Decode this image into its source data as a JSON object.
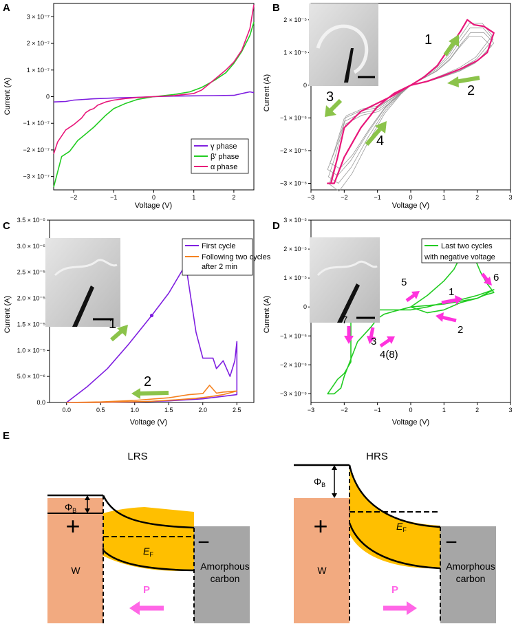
{
  "colors": {
    "purple": "#7f1fe0",
    "green": "#22cc22",
    "pink": "#e8177a",
    "orange": "#f58220",
    "gray": "#9a9a9a",
    "arrow_green": "#8bc34a",
    "arrow_pink": "#ff33dd",
    "w_fill": "#f2aa80",
    "carbon_fill": "#a6a6a6",
    "fermi_fill": "#ffbf00",
    "photo_bg": "#cfcfcf"
  },
  "chart_data": [
    {
      "panel": "A",
      "type": "line",
      "xlabel": "Voltage (V)",
      "ylabel": "Current (A)",
      "xlim": [
        -2.5,
        2.5
      ],
      "ylim": [
        -3.5e-07,
        3.5e-07
      ],
      "xticks": [
        -2,
        -1,
        0,
        1,
        2
      ],
      "xtick_labels": [
        "−2",
        "−1",
        "0",
        "1",
        "2"
      ],
      "yticks": [
        -3e-07,
        -2e-07,
        -1e-07,
        0,
        1e-07,
        2e-07,
        3e-07
      ],
      "ytick_labels": [
        "−3 × 10⁻⁷",
        "−2 × 10⁻⁷",
        "−1 × 10⁻⁷",
        "0",
        "1 × 10⁻⁷",
        "2 × 10⁻⁷",
        "3 × 10⁻⁷"
      ],
      "legend": [
        "γ phase",
        "β’ phase",
        "α phase"
      ],
      "legend_position": "bottom-right",
      "series": [
        {
          "name": "γ phase",
          "color": "purple",
          "x": [
            -2.5,
            -2.2,
            -2.0,
            -1.5,
            -1.0,
            -0.5,
            0,
            0.5,
            1.0,
            1.5,
            2.0,
            2.3,
            2.4,
            2.5
          ],
          "y": [
            -2e-08,
            -1.8e-08,
            -1.3e-08,
            -8e-09,
            -5e-09,
            -3e-09,
            0,
            2e-09,
            3e-09,
            4e-09,
            5e-09,
            1.5e-08,
            1.8e-08,
            1.5e-08
          ]
        },
        {
          "name": "β’ phase",
          "color": "green",
          "x": [
            -2.5,
            -2.3,
            -2.1,
            -1.9,
            -1.7,
            -1.5,
            -1.2,
            -1.0,
            -0.7,
            -0.4,
            0,
            0.5,
            0.9,
            1.2,
            1.5,
            1.8,
            2.0,
            2.2,
            2.4,
            2.5
          ],
          "y": [
            -3.4e-07,
            -2.25e-07,
            -2.05e-07,
            -1.65e-07,
            -1.4e-07,
            -1.15e-07,
            -7e-08,
            -4.5e-08,
            -2.5e-08,
            -1e-08,
            0,
            8e-09,
            1.8e-08,
            3.5e-08,
            6e-08,
            9e-08,
            1.25e-07,
            1.7e-07,
            2.3e-07,
            2.8e-07
          ]
        },
        {
          "name": "α phase",
          "color": "pink",
          "x": [
            -2.5,
            -2.4,
            -2.2,
            -2.0,
            -1.8,
            -1.7,
            -1.6,
            -1.5,
            -1.4,
            -1.2,
            -1.0,
            -0.7,
            -0.4,
            0,
            0.5,
            1.0,
            1.2,
            1.4,
            1.6,
            1.8,
            2.0,
            2.2,
            2.4,
            2.5
          ],
          "y": [
            -2.15e-07,
            -1.7e-07,
            -1.25e-07,
            -1.05e-07,
            -8e-08,
            -6e-08,
            -5e-08,
            -4.5e-08,
            -3.2e-08,
            -2e-08,
            -1.3e-08,
            -7e-09,
            -3e-09,
            0,
            4e-09,
            1.2e-08,
            2.5e-08,
            5e-08,
            7.5e-08,
            1e-07,
            1.3e-07,
            1.75e-07,
            2.55e-07,
            3.45e-07
          ]
        }
      ]
    },
    {
      "panel": "B",
      "type": "line",
      "xlabel": "Voltage (V)",
      "ylabel": "Current (A)",
      "xlim": [
        -3,
        3
      ],
      "ylim": [
        -3.2e-05,
        2.5e-05
      ],
      "xticks": [
        -3,
        -2,
        -1,
        0,
        1,
        2,
        3
      ],
      "xtick_labels": [
        "−3",
        "−2",
        "−1",
        "0",
        "1",
        "2",
        "3"
      ],
      "yticks": [
        -3e-05,
        -2e-05,
        -1e-05,
        0,
        1e-05,
        2e-05
      ],
      "ytick_labels": [
        "−3 × 10⁻⁵",
        "−2 × 10⁻⁵",
        "−1 × 10⁻⁵",
        "0",
        "1 × 10⁻⁵",
        "2 × 10⁻⁵"
      ],
      "step_labels": [
        "1",
        "2",
        "3",
        "4"
      ],
      "series": [
        {
          "name": "highlighted cycle",
          "color": "pink",
          "x": [
            0,
            0.4,
            0.8,
            1.2,
            1.5,
            1.7,
            1.9,
            2.2,
            2.5,
            2.3,
            2.0,
            1.5,
            1.0,
            0.5,
            0,
            -0.5,
            -1.0,
            -1.5,
            -1.8,
            -2.0,
            -2.2,
            -2.4,
            -2.5,
            -2.3,
            -2.0,
            -1.5,
            -1.0,
            -0.5,
            0
          ],
          "y": [
            0,
            2.5e-06,
            6e-06,
            1.2e-05,
            1.65e-05,
            2e-05,
            1.85e-05,
            1.8e-05,
            1.6e-05,
            1e-05,
            7.5e-06,
            5e-06,
            3e-06,
            1.2e-06,
            0,
            -3e-06,
            -5.5e-06,
            -8e-06,
            -1.1e-05,
            -1.3e-05,
            -2.2e-05,
            -3e-05,
            -3e-05,
            -3e-05,
            -2.2e-05,
            -1.3e-05,
            -6.5e-06,
            -2.5e-06,
            0
          ]
        },
        {
          "name": "other cycles",
          "color": "gray",
          "x": [
            0,
            0.8,
            1.2,
            1.5,
            1.8,
            2.2,
            2.5,
            2.0,
            1.5,
            1.0,
            0.5,
            0,
            -0.5,
            -1.0,
            -1.5,
            -2.0,
            -2.3,
            -2.5,
            -2.2,
            -1.8,
            -1.3,
            -0.8,
            -0.3,
            0
          ],
          "y": [
            0,
            5e-06,
            9e-06,
            1.35e-05,
            1.75e-05,
            1.75e-05,
            1.4e-05,
            8e-06,
            5e-06,
            3e-06,
            1.2e-06,
            0,
            -4e-06,
            -7.5e-06,
            -8.5e-06,
            -1.1e-05,
            -2.2e-05,
            -2.8e-05,
            -3e-05,
            -2.5e-05,
            -1.6e-05,
            -8e-06,
            -2.5e-06,
            0
          ]
        }
      ]
    },
    {
      "panel": "C",
      "type": "line",
      "xlabel": "Voltage (V)",
      "ylabel": "Current (A)",
      "xlim": [
        -0.25,
        2.75
      ],
      "ylim": [
        0,
        3.5e-05
      ],
      "xticks": [
        0.0,
        0.5,
        1.0,
        1.5,
        2.0,
        2.5
      ],
      "xtick_labels": [
        "0.0",
        "0.5",
        "1.0",
        "1.5",
        "2.0",
        "2.5"
      ],
      "yticks": [
        0,
        5e-06,
        1e-05,
        1.5e-05,
        2e-05,
        2.5e-05,
        3e-05,
        3.5e-05
      ],
      "ytick_labels": [
        "0.0",
        "5.0 × 10⁻⁶",
        "1.0 × 10⁻⁵",
        "1.5 × 10⁻⁵",
        "2.0 × 10⁻⁵",
        "2.5 × 10⁻⁵",
        "3.0 × 10⁻⁵",
        "3.5 × 10⁻⁵"
      ],
      "legend": [
        "First cycle",
        "Following two cycles after 2 min"
      ],
      "legend_lines": [
        "First cycle",
        "Following two cycles",
        "after 2 min"
      ],
      "legend_position": "top-right",
      "step_labels": [
        "1",
        "2"
      ],
      "series": [
        {
          "name": "First cycle",
          "color": "purple",
          "x": [
            0,
            0.3,
            0.6,
            0.9,
            1.25,
            1.5,
            1.75,
            1.9,
            2.0,
            2.15,
            2.2,
            2.3,
            2.4,
            2.47,
            2.5,
            2.5,
            2.0,
            1.5,
            1.0,
            0.5,
            0
          ],
          "y": [
            0,
            3e-06,
            6.5e-06,
            1.1e-05,
            1.67e-05,
            2.1e-05,
            2.65e-05,
            1.35e-05,
            8.5e-06,
            8.5e-06,
            6.5e-06,
            8e-06,
            5e-06,
            8e-06,
            1.17e-05,
            1.5e-06,
            7e-07,
            3e-07,
            1e-07,
            0,
            0
          ],
          "marker": {
            "x": 1.25,
            "y": 1.67e-05
          }
        },
        {
          "name": "Following two cycles after 2 min",
          "color": "orange",
          "x": [
            0,
            0.5,
            1.0,
            1.5,
            1.8,
            2.0,
            2.1,
            2.2,
            2.3,
            2.5,
            2.3,
            2.1,
            1.9,
            1.6,
            1.2,
            0.8,
            0.4,
            0
          ],
          "y": [
            0,
            1e-07,
            4e-07,
            9e-07,
            1.5e-06,
            1.7e-06,
            3.3e-06,
            1.8e-06,
            2e-06,
            2.2e-06,
            1.5e-06,
            1.1e-06,
            8e-07,
            5e-07,
            2e-07,
            1e-07,
            0,
            0
          ]
        }
      ]
    },
    {
      "panel": "D",
      "type": "line",
      "xlabel": "Voltage (V)",
      "ylabel": "Current (A)",
      "xlim": [
        -3,
        3
      ],
      "ylim": [
        -3.3e-05,
        3e-05
      ],
      "xticks": [
        -3,
        -2,
        -1,
        0,
        1,
        2,
        3
      ],
      "xtick_labels": [
        "−3",
        "−2",
        "−1",
        "0",
        "1",
        "2",
        "3"
      ],
      "yticks": [
        -3e-05,
        -2e-05,
        -1e-05,
        0,
        1e-05,
        2e-05,
        3e-05
      ],
      "ytick_labels": [
        "−3 × 10⁻⁵",
        "−2 × 10⁻⁵",
        "−1 × 10⁻⁵",
        "0",
        "1 × 10⁻⁵",
        "2 × 10⁻⁵",
        "3 × 10⁻⁵"
      ],
      "legend": [
        "Last two cycles with negative voltage"
      ],
      "legend_lines": [
        "Last two cycles",
        "with negative voltage"
      ],
      "legend_position": "top-right",
      "step_labels": [
        "1",
        "2",
        "3",
        "4(8)",
        "5",
        "6",
        "7"
      ],
      "series": [
        {
          "name": "Last two cycles with negative voltage",
          "color": "green",
          "x": [
            0,
            0.5,
            1.0,
            1.3,
            1.5,
            1.65,
            1.9,
            2.1,
            2.3,
            2.5,
            2.2,
            2.0,
            1.5,
            1.0,
            0.5,
            0,
            -0.5,
            -0.8,
            -1.0,
            -1.2,
            -1.6,
            -1.8,
            -2.0,
            -2.1,
            -2.3,
            -2.5,
            -2.2,
            -2.0,
            -1.8,
            -1.8,
            -1.5,
            -1.0,
            -0.5,
            0,
            0.5,
            1.0,
            1.5,
            2.0,
            2.5,
            2.0,
            1.5,
            1.0,
            0.5,
            0
          ],
          "y": [
            0,
            4e-06,
            9e-06,
            1.3e-05,
            1.75e-05,
            1.6e-05,
            1.75e-05,
            1.2e-05,
            8e-06,
            5e-06,
            4e-06,
            3e-06,
            2e-06,
            1e-06,
            5e-07,
            0,
            -1.5e-06,
            -2.5e-06,
            -4e-06,
            -7e-06,
            -1.2e-05,
            -1.8e-05,
            -2.4e-05,
            -2.8e-05,
            -3e-05,
            -3e-05,
            -2.5e-05,
            -2.3e-05,
            -1.9e-05,
            -5e-07,
            -5e-07,
            -1e-06,
            -1e-06,
            -1e-06,
            0,
            1.5e-06,
            2.5e-06,
            4e-06,
            6e-06,
            3e-06,
            1.5e-06,
            -1e-06,
            -2e-06,
            0
          ]
        }
      ]
    }
  ],
  "panel_letters": [
    "A",
    "B",
    "C",
    "D",
    "E"
  ],
  "diagram": {
    "lrs": {
      "title": "LRS",
      "phi": "Φ",
      "phi_sub": "B",
      "ef": "E",
      "ef_sub": "F",
      "plus": "+",
      "minus": "−",
      "metal": "W",
      "carbon_l1": "Amorphous",
      "carbon_l2": "carbon",
      "p": "P",
      "p_direction": "left"
    },
    "hrs": {
      "title": "HRS",
      "phi": "Φ",
      "phi_sub": "B",
      "ef": "E",
      "ef_sub": "F",
      "plus": "+",
      "minus": "−",
      "metal": "W",
      "carbon_l1": "Amorphous",
      "carbon_l2": "carbon",
      "p": "P",
      "p_direction": "right"
    }
  }
}
